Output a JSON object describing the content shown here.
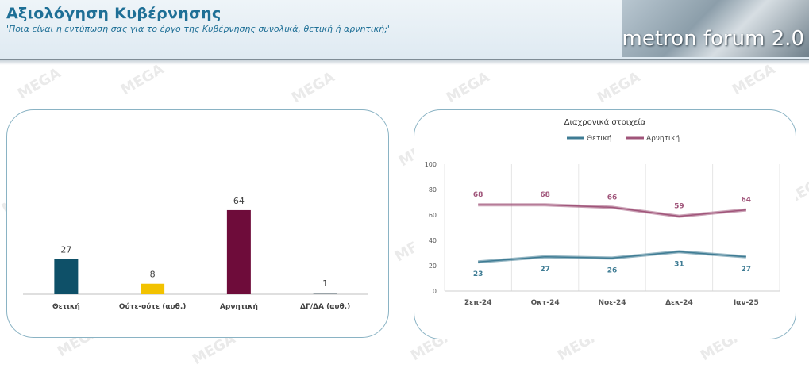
{
  "header": {
    "title": "Αξιολόγηση Κυβέρνησης",
    "subtitle": "'Ποια είναι η εντύπωση σας για το έργο της Κυβέρνησης συνολικά, θετική ή αρνητική;'",
    "logo_text": "metron forum 2.0",
    "title_color": "#1e6f96"
  },
  "watermark_text": "MEGA",
  "chart_data": [
    {
      "type": "bar",
      "categories": [
        "Θετική",
        "Ούτε-ούτε (αυθ.)",
        "Αρνητική",
        "ΔΓ/ΔΑ (αυθ.)"
      ],
      "values": [
        27,
        8,
        64,
        1
      ],
      "colors": [
        "#0e5068",
        "#f2c200",
        "#6e0c3a",
        "#9aa3a8"
      ],
      "ylim": [
        0,
        70
      ]
    },
    {
      "type": "line",
      "title": "Διαχρονικά στοιχεία",
      "categories": [
        "Σεπ-24",
        "Οκτ-24",
        "Νοε-24",
        "Δεκ-24",
        "Ιαν-25"
      ],
      "series": [
        {
          "name": "Θετική",
          "values": [
            23,
            27,
            26,
            31,
            27
          ],
          "color": "#3f7c94"
        },
        {
          "name": "Αρνητική",
          "values": [
            68,
            68,
            66,
            59,
            64
          ],
          "color": "#a0557a"
        }
      ],
      "ylim": [
        0,
        100
      ],
      "yticks": [
        0,
        20,
        40,
        60,
        80,
        100
      ],
      "grid": true,
      "legend": "top"
    }
  ]
}
